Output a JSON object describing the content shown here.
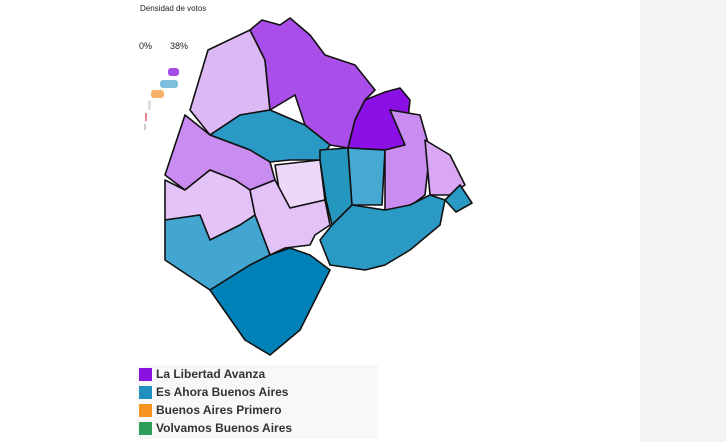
{
  "map": {
    "scale_title": "Densidad de votos",
    "scale_min_label": "0%",
    "scale_max_label": "38%",
    "legend": [
      {
        "label": "La Libertad Avanza",
        "color": "#8a12e0"
      },
      {
        "label": "Es Ahora Buenos Aires",
        "color": "#1f8fbd"
      },
      {
        "label": "Buenos Aires Primero",
        "color": "#f7941d"
      },
      {
        "label": "Volvamos Buenos Aires",
        "color": "#2e9e5b"
      }
    ]
  }
}
